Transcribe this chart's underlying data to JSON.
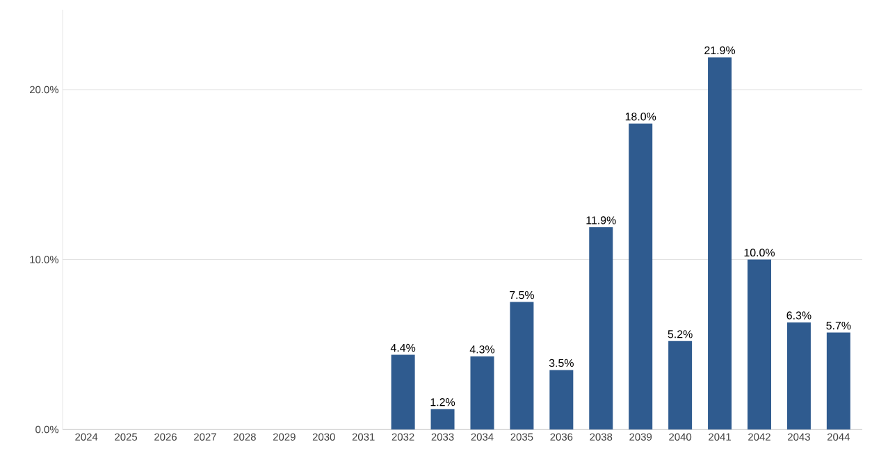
{
  "chart_data": {
    "type": "bar",
    "categories": [
      "2024",
      "2025",
      "2026",
      "2027",
      "2028",
      "2029",
      "2030",
      "2031",
      "2032",
      "2033",
      "2034",
      "2035",
      "2036",
      "2038",
      "2039",
      "2040",
      "2041",
      "2042",
      "2043",
      "2044"
    ],
    "values": [
      0,
      0,
      0,
      0,
      0,
      0,
      0,
      0,
      4.4,
      1.2,
      4.3,
      7.5,
      3.5,
      11.9,
      18.0,
      5.2,
      21.9,
      10.0,
      6.3,
      5.7
    ],
    "value_labels": [
      null,
      null,
      null,
      null,
      null,
      null,
      null,
      null,
      "4.4%",
      "1.2%",
      "4.3%",
      "7.5%",
      "3.5%",
      "11.9%",
      "18.0%",
      "5.2%",
      "21.9%",
      "10.0%",
      "6.3%",
      "5.7%"
    ],
    "color": "#2f5b8f",
    "ylim": [
      0,
      24.7
    ],
    "yticks": [
      {
        "value": 0,
        "label": "0.0%"
      },
      {
        "value": 10,
        "label": "10.0%"
      },
      {
        "value": 20,
        "label": "20.0%"
      }
    ],
    "grid": "y"
  }
}
